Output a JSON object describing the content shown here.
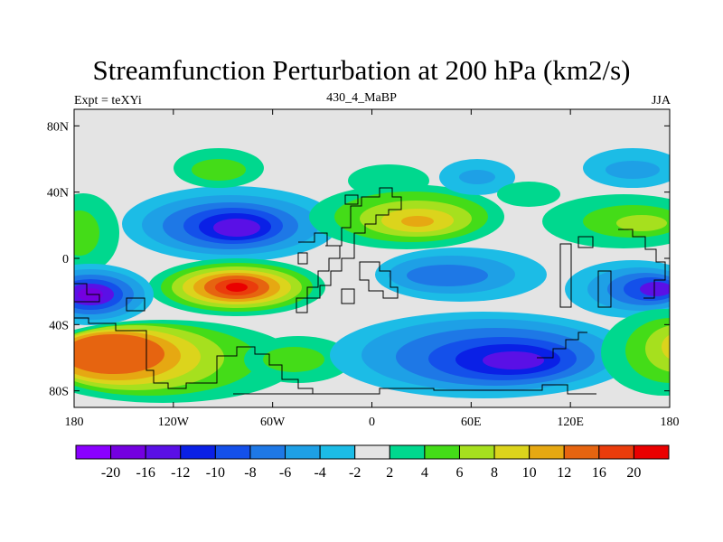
{
  "title": "Streamfunction Perturbation at 200 hPa (km2/s)",
  "left_label": "Expt = teXYi",
  "center_label": "430_4_MaBP",
  "right_label": "JJA",
  "lat_ticks": [
    "80N",
    "40N",
    "0",
    "40S",
    "80S"
  ],
  "lon_ticks": [
    "180",
    "120W",
    "60W",
    "0",
    "60E",
    "120E",
    "180"
  ],
  "colorbar": {
    "colors": [
      "#8a00ff",
      "#7400e0",
      "#5a10e6",
      "#0a20e6",
      "#1450ea",
      "#1e78e6",
      "#1ea0e6",
      "#1cbce6",
      "#e4e4e4",
      "#00d88e",
      "#44dc18",
      "#a6e01e",
      "#dcd41c",
      "#e6a812",
      "#e66410",
      "#ea3c0c",
      "#ea0000"
    ],
    "labels": [
      "-20",
      "-16",
      "-12",
      "-10",
      "-8",
      "-6",
      "-4",
      "-2",
      "2",
      "4",
      "6",
      "8",
      "10",
      "12",
      "16",
      "20"
    ]
  }
}
